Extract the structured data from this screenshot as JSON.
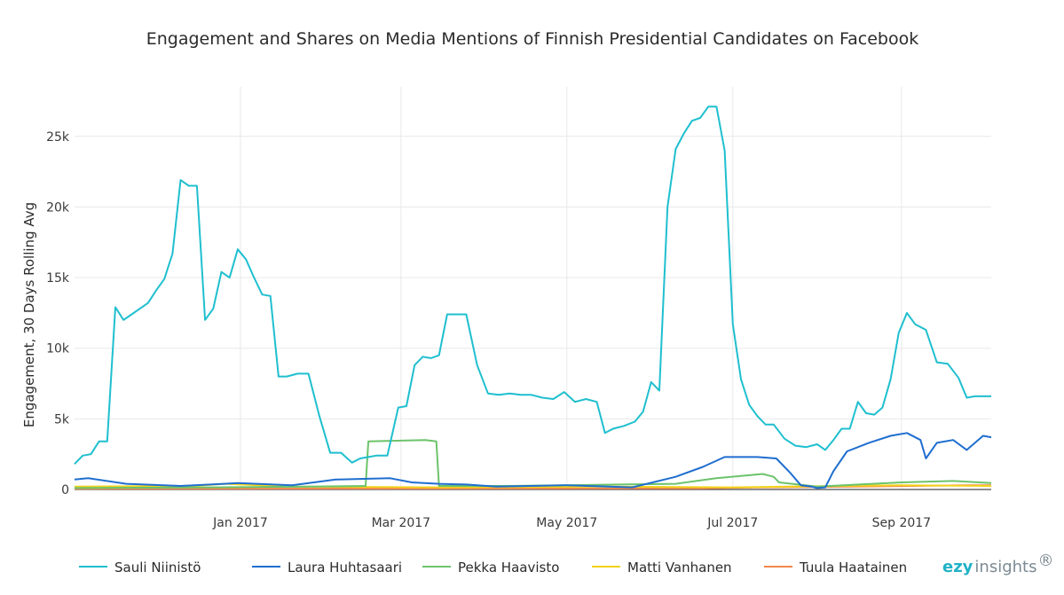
{
  "chart_data": {
    "type": "line",
    "title": "Engagement and Shares on Media Mentions of Finnish Presidential Candidates on Facebook",
    "xlabel": "",
    "ylabel": "Engagement, 30 Days Rolling Avg",
    "x_ticks": [
      "Jan 2017",
      "Mar 2017",
      "May 2017",
      "Jul 2017",
      "Sep 2017"
    ],
    "y_ticks": [
      "0",
      "5k",
      "10k",
      "15k",
      "20k",
      "25k"
    ],
    "ylim": [
      0,
      28500
    ],
    "grid": true,
    "legend_position": "bottom",
    "series": [
      {
        "name": "Sauli Niinistö",
        "color": "#1fbfcf",
        "x": [
          "2016-11-01",
          "2016-11-04",
          "2016-11-07",
          "2016-11-10",
          "2016-11-13",
          "2016-11-16",
          "2016-11-19",
          "2016-11-22",
          "2016-11-25",
          "2016-11-28",
          "2016-12-01",
          "2016-12-04",
          "2016-12-07",
          "2016-12-10",
          "2016-12-13",
          "2016-12-16",
          "2016-12-19",
          "2016-12-22",
          "2016-12-25",
          "2016-12-28",
          "2016-12-31",
          "2017-01-03",
          "2017-01-06",
          "2017-01-09",
          "2017-01-12",
          "2017-01-15",
          "2017-01-18",
          "2017-01-22",
          "2017-01-26",
          "2017-01-30",
          "2017-02-03",
          "2017-02-07",
          "2017-02-11",
          "2017-02-14",
          "2017-02-17",
          "2017-02-20",
          "2017-02-24",
          "2017-02-28",
          "2017-03-03",
          "2017-03-06",
          "2017-03-09",
          "2017-03-12",
          "2017-03-15",
          "2017-03-18",
          "2017-03-21",
          "2017-03-25",
          "2017-03-29",
          "2017-04-02",
          "2017-04-06",
          "2017-04-10",
          "2017-04-14",
          "2017-04-18",
          "2017-04-22",
          "2017-04-26",
          "2017-04-30",
          "2017-05-04",
          "2017-05-08",
          "2017-05-12",
          "2017-05-15",
          "2017-05-18",
          "2017-05-22",
          "2017-05-26",
          "2017-05-29",
          "2017-06-01",
          "2017-06-04",
          "2017-06-07",
          "2017-06-10",
          "2017-06-13",
          "2017-06-16",
          "2017-06-19",
          "2017-06-22",
          "2017-06-25",
          "2017-06-28",
          "2017-07-01",
          "2017-07-04",
          "2017-07-07",
          "2017-07-10",
          "2017-07-13",
          "2017-07-16",
          "2017-07-20",
          "2017-07-24",
          "2017-07-28",
          "2017-08-01",
          "2017-08-04",
          "2017-08-07",
          "2017-08-10",
          "2017-08-13",
          "2017-08-16",
          "2017-08-19",
          "2017-08-22",
          "2017-08-25",
          "2017-08-28",
          "2017-08-31",
          "2017-09-03",
          "2017-09-06",
          "2017-09-10",
          "2017-09-14",
          "2017-09-18",
          "2017-09-22",
          "2017-09-25",
          "2017-09-28",
          "2017-10-01",
          "2017-10-04"
        ],
        "values": [
          1800,
          2400,
          2500,
          3400,
          3400,
          12900,
          12000,
          12400,
          12800,
          13200,
          14100,
          14900,
          16700,
          21900,
          21500,
          21500,
          12000,
          12800,
          15400,
          15000,
          17000,
          16300,
          15000,
          13800,
          13700,
          8000,
          8000,
          8200,
          8200,
          5200,
          2600,
          2600,
          1900,
          2200,
          2300,
          2400,
          2400,
          5800,
          5900,
          8800,
          9400,
          9300,
          9500,
          12400,
          12400,
          12400,
          8800,
          6800,
          6700,
          6800,
          6700,
          6700,
          6500,
          6400,
          6900,
          6200,
          6400,
          6200,
          4000,
          4300,
          4500,
          4800,
          5500,
          7600,
          7000,
          20000,
          24100,
          25200,
          26100,
          26300,
          27100,
          27100,
          24000,
          11700,
          7800,
          6000,
          5200,
          4600,
          4600,
          3600,
          3100,
          3000,
          3200,
          2800,
          3500,
          4300,
          4300,
          6200,
          5400,
          5300,
          5800,
          7800,
          11100,
          12500,
          11700,
          11300,
          9000,
          8900,
          7900,
          6500,
          6600,
          6600,
          6600
        ]
      },
      {
        "name": "Laura Huhtasaari",
        "color": "#1f6ecf",
        "x": [
          "2016-11-01",
          "2016-11-06",
          "2016-11-20",
          "2016-12-10",
          "2016-12-31",
          "2017-01-20",
          "2017-02-05",
          "2017-02-25",
          "2017-03-05",
          "2017-03-15",
          "2017-03-25",
          "2017-04-05",
          "2017-05-01",
          "2017-05-25",
          "2017-06-10",
          "2017-06-20",
          "2017-06-28",
          "2017-07-10",
          "2017-07-17",
          "2017-07-22",
          "2017-07-26",
          "2017-07-30",
          "2017-08-01",
          "2017-08-04",
          "2017-08-07",
          "2017-08-12",
          "2017-08-20",
          "2017-08-28",
          "2017-09-03",
          "2017-09-08",
          "2017-09-10",
          "2017-09-14",
          "2017-09-20",
          "2017-09-25",
          "2017-10-01",
          "2017-10-04"
        ],
        "values": [
          700,
          800,
          400,
          250,
          450,
          300,
          700,
          800,
          500,
          400,
          350,
          200,
          300,
          150,
          900,
          1600,
          2300,
          2300,
          2200,
          1200,
          300,
          200,
          100,
          150,
          1300,
          2700,
          3300,
          3800,
          4000,
          3500,
          2200,
          3300,
          3500,
          2800,
          3800,
          3700
        ]
      },
      {
        "name": "Pekka Haavisto",
        "color": "#6cc36a",
        "x": [
          "2016-11-01",
          "2016-12-20",
          "2017-01-25",
          "2017-02-16",
          "2017-02-17",
          "2017-03-10",
          "2017-03-14",
          "2017-03-15",
          "2017-04-10",
          "2017-05-01",
          "2017-05-20",
          "2017-06-10",
          "2017-06-25",
          "2017-07-12",
          "2017-07-16",
          "2017-07-18",
          "2017-08-01",
          "2017-09-01",
          "2017-09-20",
          "2017-10-04"
        ],
        "values": [
          100,
          150,
          200,
          250,
          3400,
          3500,
          3400,
          250,
          250,
          300,
          350,
          400,
          800,
          1100,
          900,
          500,
          200,
          500,
          600,
          450
        ]
      },
      {
        "name": "Matti Vanhanen",
        "color": "#f2d21b",
        "x": [
          "2016-11-01",
          "2016-12-15",
          "2016-12-26",
          "2017-01-20",
          "2017-03-15",
          "2017-05-15",
          "2017-07-01",
          "2017-09-01",
          "2017-10-04"
        ],
        "values": [
          200,
          250,
          400,
          200,
          150,
          200,
          150,
          300,
          250
        ]
      },
      {
        "name": "Tuula Haatainen",
        "color": "#f2874e",
        "x": [
          "2016-11-01",
          "2017-03-01",
          "2017-06-20",
          "2017-07-10",
          "2017-08-15",
          "2017-09-25",
          "2017-10-04"
        ],
        "values": [
          50,
          60,
          80,
          150,
          200,
          300,
          300
        ]
      }
    ]
  },
  "legend": {
    "items": [
      {
        "label": "Sauli Niinistö",
        "color": "#1fbfcf"
      },
      {
        "label": "Laura Huhtasaari",
        "color": "#1f6ecf"
      },
      {
        "label": "Pekka Haavisto",
        "color": "#6cc36a"
      },
      {
        "label": "Matti Vanhanen",
        "color": "#f2d21b"
      },
      {
        "label": "Tuula Haatainen",
        "color": "#f2874e"
      }
    ]
  },
  "logo": {
    "part1": "ezy",
    "part2": "insights",
    "mark": "®"
  }
}
